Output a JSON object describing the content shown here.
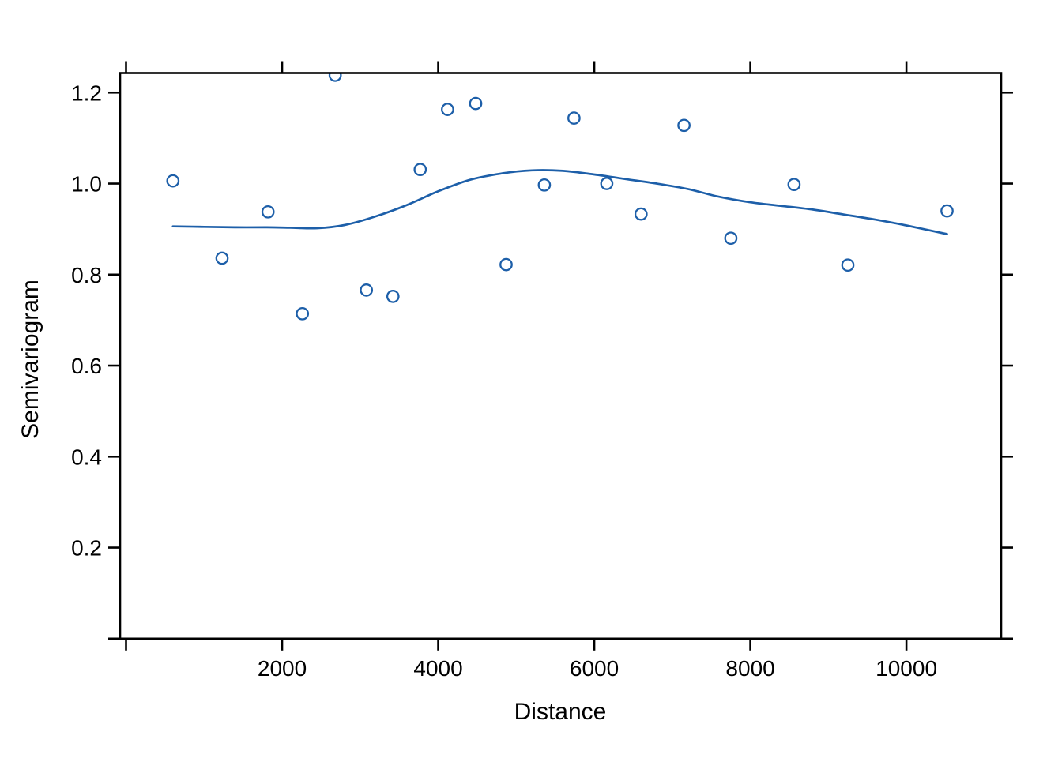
{
  "chart_data": {
    "type": "scatter",
    "title": "",
    "xlabel": "Distance",
    "ylabel": "Semivariogram",
    "xlim": [
      -76,
      11214
    ],
    "ylim": [
      0,
      1.243
    ],
    "grid": false,
    "legend": "none",
    "x_ticks": {
      "values": [
        0,
        2000,
        4000,
        6000,
        8000,
        10000
      ],
      "labels": [
        "",
        "2000",
        "4000",
        "6000",
        "8000",
        "10000"
      ]
    },
    "y_ticks": {
      "values": [
        0,
        0.2,
        0.4,
        0.6,
        0.8,
        1.0,
        1.2
      ],
      "labels": [
        "",
        "0.2",
        "0.4",
        "0.6",
        "0.8",
        "1.0",
        "1.2"
      ]
    },
    "series": [
      {
        "name": "empirical-semivariance-points",
        "type": "points",
        "marker": "open-circle",
        "color": "#1d5fa9",
        "x": [
          600,
          1230,
          1820,
          2260,
          2680,
          3080,
          3420,
          3770,
          4120,
          4480,
          4870,
          5360,
          5740,
          6160,
          6600,
          7150,
          7750,
          8560,
          9250,
          10520
        ],
        "y": [
          1.006,
          0.836,
          0.938,
          0.714,
          1.238,
          0.766,
          0.752,
          1.031,
          1.163,
          1.176,
          0.822,
          0.997,
          1.144,
          1.0,
          0.933,
          1.128,
          0.88,
          0.998,
          0.821,
          0.94
        ]
      },
      {
        "name": "loess-smooth-line",
        "type": "line",
        "color": "#1d5fa9",
        "x": [
          600,
          1000,
          1400,
          1800,
          2100,
          2450,
          2800,
          3200,
          3600,
          4000,
          4400,
          4800,
          5200,
          5600,
          6000,
          6400,
          6800,
          7200,
          7600,
          8000,
          8400,
          8800,
          9200,
          9600,
          10000,
          10520
        ],
        "y": [
          0.906,
          0.905,
          0.904,
          0.904,
          0.903,
          0.902,
          0.909,
          0.928,
          0.953,
          0.983,
          1.008,
          1.022,
          1.029,
          1.028,
          1.02,
          1.01,
          1.0,
          0.988,
          0.971,
          0.959,
          0.951,
          0.943,
          0.932,
          0.921,
          0.908,
          0.889
        ]
      }
    ],
    "colors": {
      "data": "#1d5fa9",
      "axis": "#000000",
      "background": "#ffffff"
    }
  }
}
